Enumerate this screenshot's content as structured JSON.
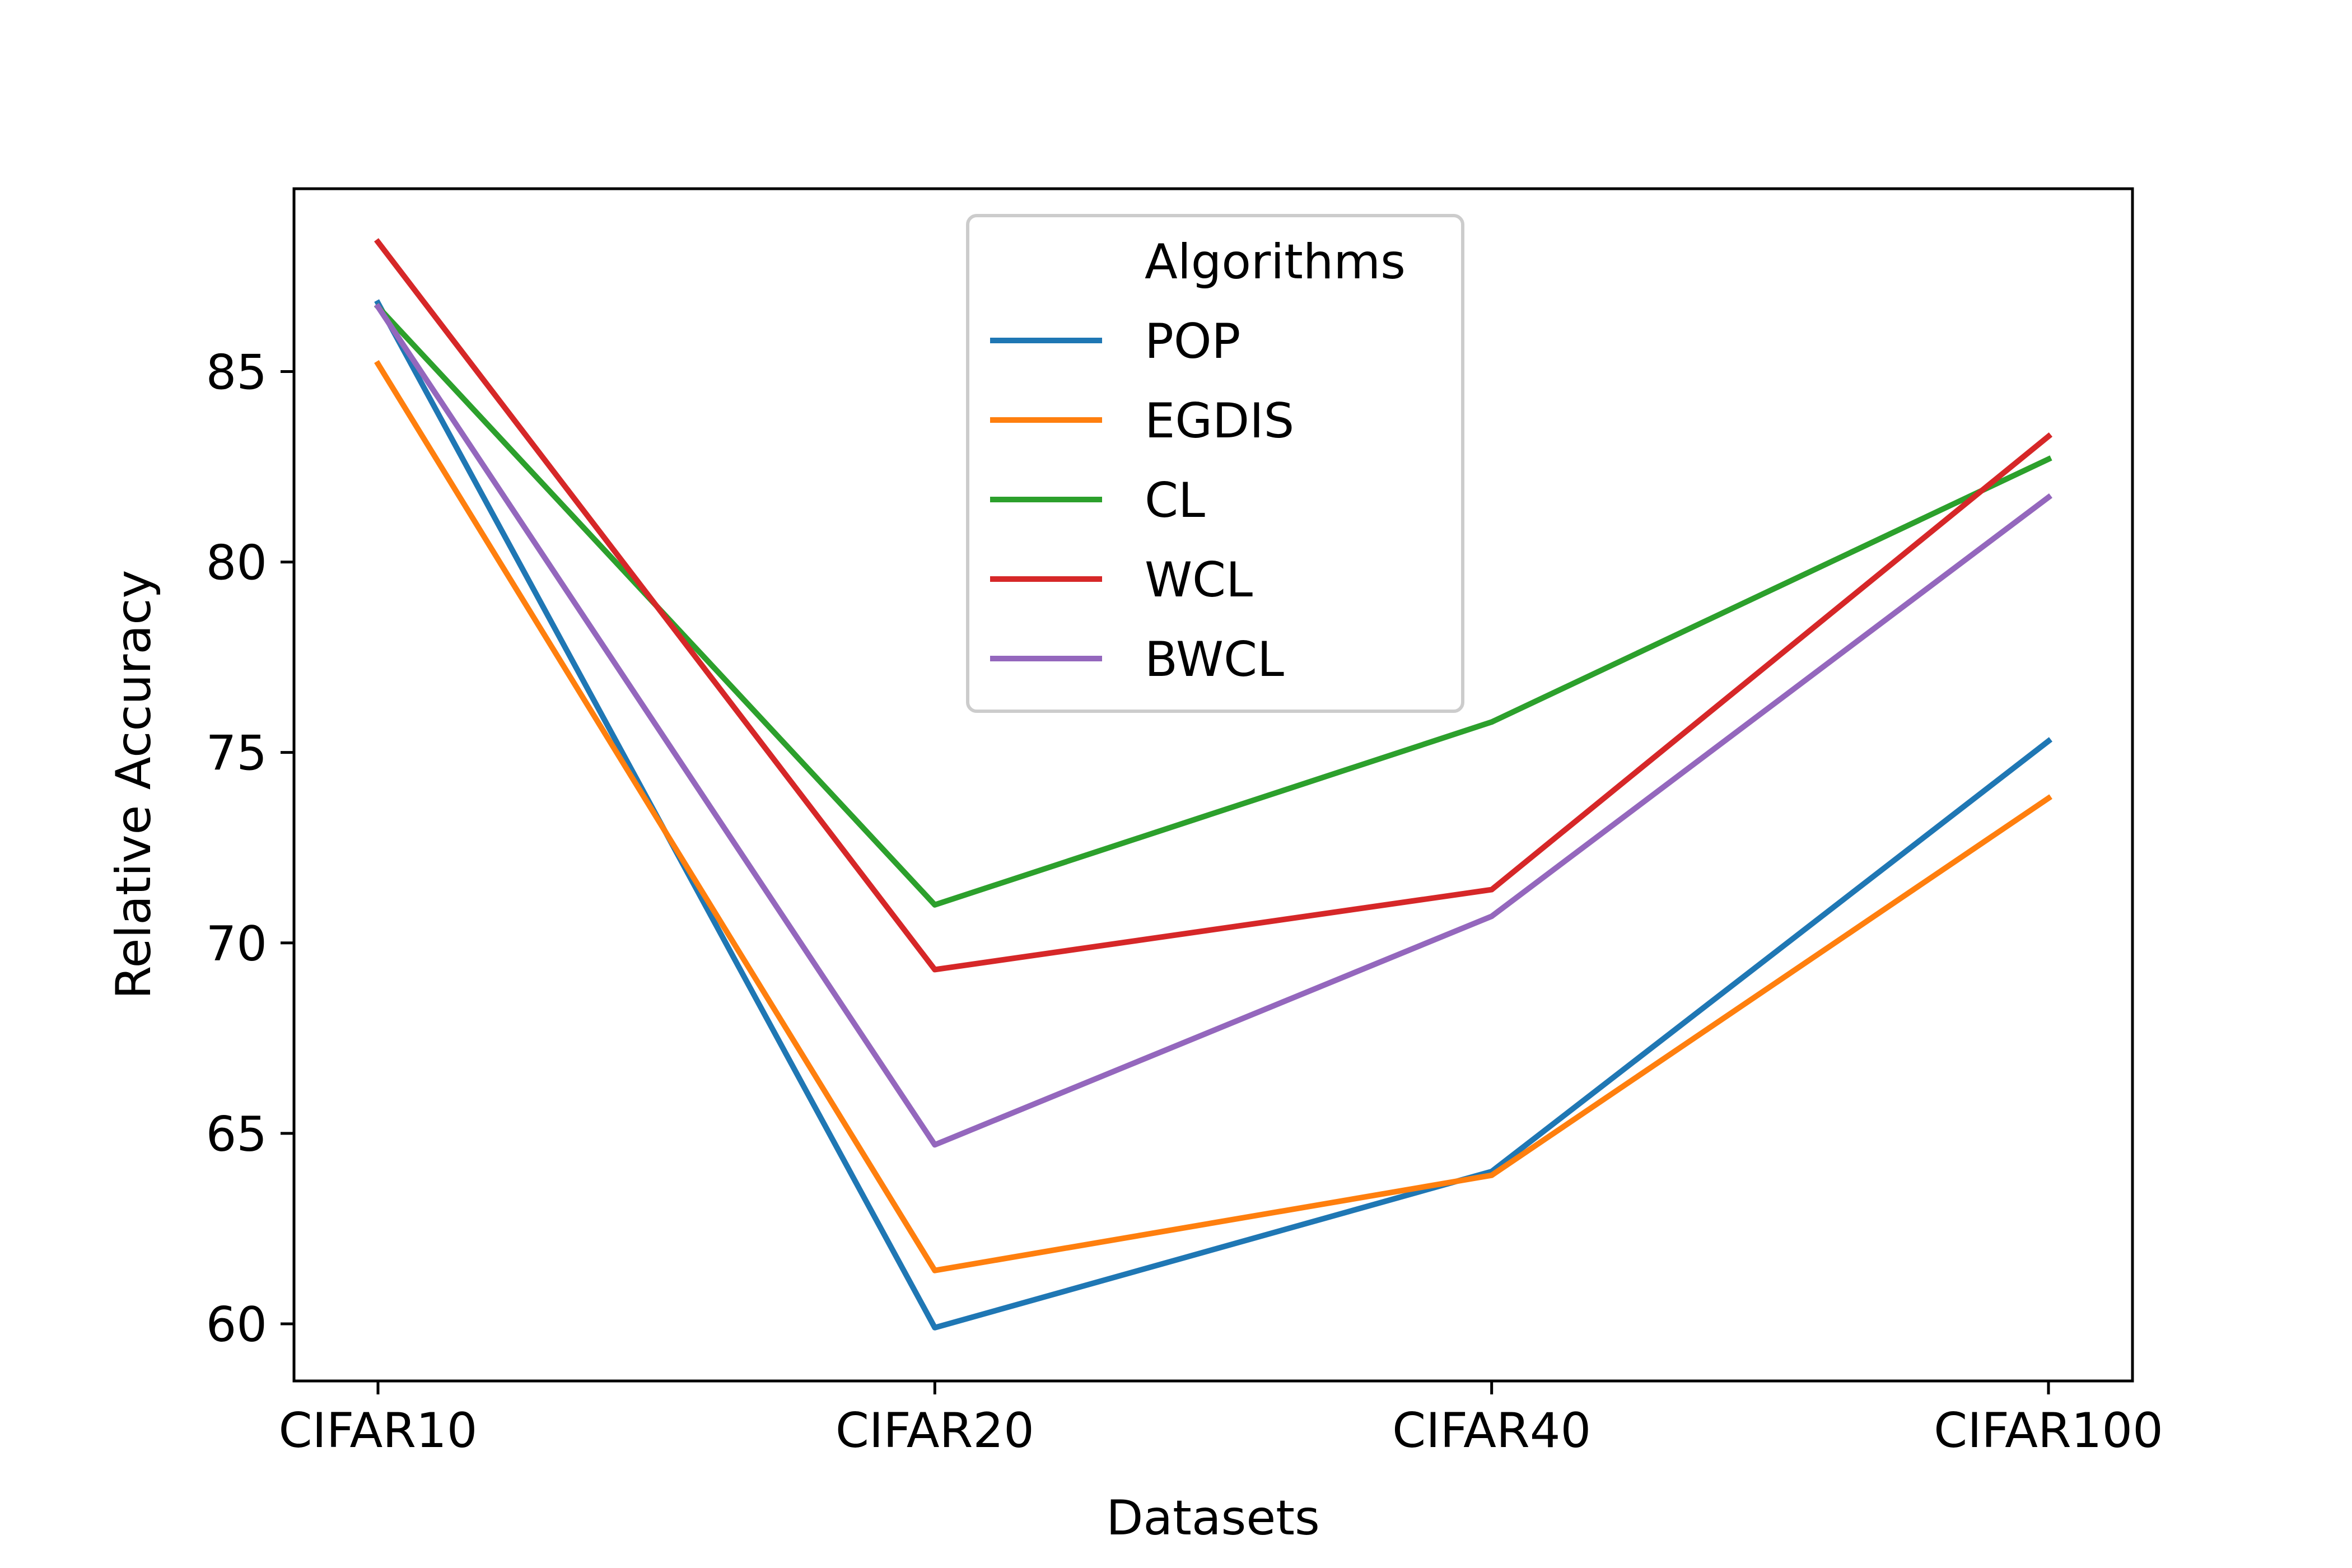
{
  "chart_data": {
    "type": "line",
    "title": "",
    "xlabel": "Datasets",
    "ylabel": "Relative Accuracy",
    "categories": [
      "CIFAR10",
      "CIFAR20",
      "CIFAR40",
      "CIFAR100"
    ],
    "ylim": [
      58.5,
      89.8
    ],
    "yticks": [
      60,
      65,
      70,
      75,
      80,
      85
    ],
    "grid": false,
    "legend": {
      "title": "Algorithms",
      "placement": "upper-center"
    },
    "series": [
      {
        "name": "POP",
        "color": "#1f77b4",
        "values": [
          86.8,
          59.9,
          64.0,
          75.3
        ]
      },
      {
        "name": "EGDIS",
        "color": "#ff7f0e",
        "values": [
          85.2,
          61.4,
          63.9,
          73.8
        ]
      },
      {
        "name": "CL",
        "color": "#2ca02c",
        "values": [
          86.7,
          71.0,
          75.8,
          82.7
        ]
      },
      {
        "name": "WCL",
        "color": "#d62728",
        "values": [
          88.4,
          69.3,
          71.4,
          83.3
        ]
      },
      {
        "name": "BWCL",
        "color": "#9467bd",
        "values": [
          86.7,
          64.7,
          70.7,
          81.7
        ]
      }
    ]
  }
}
